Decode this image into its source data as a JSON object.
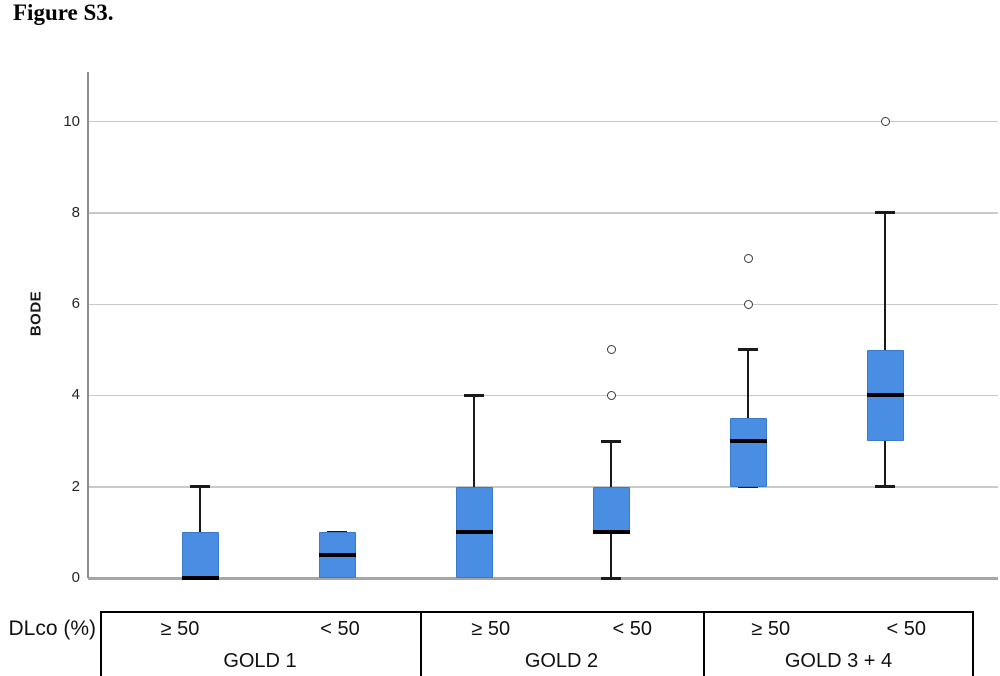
{
  "figure": {
    "title": "Figure S3."
  },
  "y_axis": {
    "label": "BODE",
    "ticks": [
      0,
      2,
      4,
      6,
      8,
      10
    ]
  },
  "chart_data": {
    "type": "boxplot",
    "title": "Figure S3.",
    "xlabel": "",
    "ylabel": "BODE",
    "ylim": [
      0,
      10
    ],
    "y_ticks": [
      0,
      2,
      4,
      6,
      8,
      10
    ],
    "grid": true,
    "groups": [
      {
        "label": "GOLD 1",
        "dlco_levels": [
          "≥ 50",
          "< 50"
        ]
      },
      {
        "label": "GOLD 2",
        "dlco_levels": [
          "≥ 50",
          "< 50"
        ]
      },
      {
        "label": "GOLD 3 + 4",
        "dlco_levels": [
          "≥ 50",
          "< 50"
        ]
      }
    ],
    "boxes": [
      {
        "group": "GOLD 1",
        "dlco": "≥ 50",
        "whisker_low": null,
        "q1": 0,
        "median": 0,
        "q3": 1,
        "whisker_high": 2,
        "outliers": []
      },
      {
        "group": "GOLD 1",
        "dlco": "< 50",
        "whisker_low": null,
        "q1": 0,
        "median": 0.5,
        "q3": 1,
        "whisker_high": 1,
        "outliers": []
      },
      {
        "group": "GOLD 2",
        "dlco": "≥ 50",
        "whisker_low": null,
        "q1": 0,
        "median": 1,
        "q3": 2,
        "whisker_high": 4,
        "outliers": []
      },
      {
        "group": "GOLD 2",
        "dlco": "< 50",
        "whisker_low": 0,
        "q1": 1,
        "median": 1,
        "q3": 2,
        "whisker_high": 3,
        "outliers": [
          4,
          5
        ]
      },
      {
        "group": "GOLD 3 + 4",
        "dlco": "≥ 50",
        "whisker_low": 2,
        "q1": 2,
        "median": 3,
        "q3": 3.5,
        "whisker_high": 5,
        "outliers": [
          6,
          7
        ]
      },
      {
        "group": "GOLD 3 + 4",
        "dlco": "< 50",
        "whisker_low": 2,
        "q1": 3,
        "median": 4,
        "q3": 5,
        "whisker_high": 8,
        "outliers": [
          10
        ]
      }
    ]
  },
  "table": {
    "row_label": "DLco (%)",
    "groups": [
      {
        "label": "GOLD 1",
        "cells": [
          "≥ 50",
          "< 50"
        ]
      },
      {
        "label": "GOLD 2",
        "cells": [
          "≥ 50",
          "< 50"
        ]
      },
      {
        "label": "GOLD 3 + 4",
        "cells": [
          "≥ 50",
          "< 50"
        ]
      }
    ]
  },
  "colors": {
    "box_fill": "#4a8ee4",
    "box_border": "#3a78c9",
    "median": "#000000",
    "whisker": "#1a1a1a",
    "gridline": "#c9c9c9",
    "zero_line": "#a6a6a6",
    "axis_line": "#8c8c8c",
    "outlier_stroke": "#3a3a3a",
    "table_border": "#000000",
    "text": "#1a1a1a"
  }
}
